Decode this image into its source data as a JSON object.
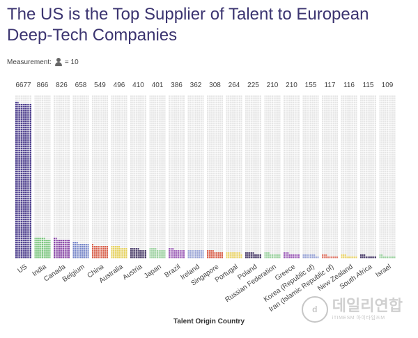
{
  "title": "The US is the Top Supplier of Talent to European Deep-Tech Companies",
  "measurement": {
    "label": "Measurement:",
    "icon": "person-icon",
    "unit_text": "= 10"
  },
  "watermark": {
    "main": "데일리연합",
    "sub": "iTIMESM 아이타임즈M"
  },
  "chart_data": {
    "type": "bar",
    "style": "pictogram",
    "title": "The US is the Top Supplier of Talent to European Deep-Tech Companies",
    "xlabel": "Talent Origin Country",
    "ylabel": "",
    "unit_per_icon": 10,
    "ylim": [
      0,
      7000
    ],
    "grid": false,
    "categories": [
      "US",
      "India",
      "Canada",
      "Belgium",
      "China",
      "Australia",
      "Austria",
      "Japan",
      "Brazil",
      "Ireland",
      "Singapore",
      "Portugal",
      "Poland",
      "Russian Federation",
      "Greece",
      "Korea (Republic of)",
      "Iran (Islamic Republic of)",
      "New Zealand",
      "South Africa",
      "Israel"
    ],
    "values": [
      6677,
      866,
      826,
      658,
      549,
      496,
      410,
      401,
      386,
      362,
      308,
      264,
      225,
      210,
      210,
      155,
      117,
      116,
      115,
      109
    ],
    "value_labels": [
      "6677",
      "866",
      "826",
      "658",
      "549",
      "496",
      "410",
      "401",
      "386",
      "362",
      "308",
      "264",
      "225",
      "210",
      "210",
      "155",
      "117",
      "116",
      "115",
      "109"
    ],
    "colors": [
      "#4b3c8c",
      "#7bc67e",
      "#8a4aa8",
      "#7787c9",
      "#d9604b",
      "#e6d15a",
      "#463866",
      "#9ad19e",
      "#9d5fb8",
      "#9aa5d6",
      "#d9604b",
      "#ead46a",
      "#463866",
      "#9ad19e",
      "#9d5fb8",
      "#9aa5d6",
      "#e07a6a",
      "#ead46a",
      "#463866",
      "#9ad19e"
    ],
    "empty_color": "#e6e6e6"
  }
}
